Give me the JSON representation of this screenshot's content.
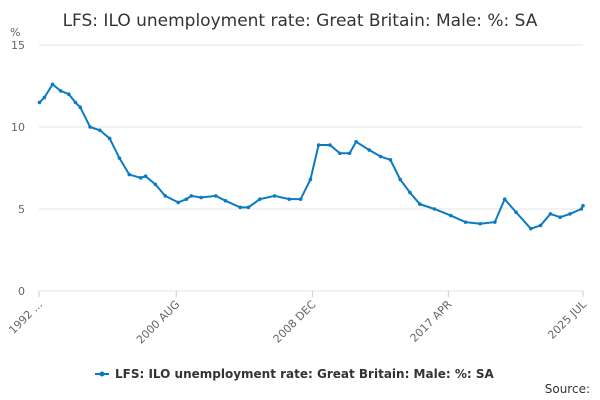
{
  "chart_data": {
    "type": "line",
    "title": "LFS: ILO unemployment rate: Great Britain: Male: %: SA",
    "y_label": "%",
    "source": "Source:",
    "x": [
      1992.2,
      1992.5,
      1993.0,
      1993.5,
      1994.0,
      1994.4,
      1994.7,
      1995.3,
      1995.9,
      1996.5,
      1997.1,
      1997.7,
      1998.4,
      1998.7,
      1999.3,
      1999.9,
      2000.7,
      2001.2,
      2001.5,
      2002.1,
      2003.0,
      2003.6,
      2004.5,
      2005.0,
      2005.7,
      2006.6,
      2007.5,
      2008.2,
      2008.8,
      2009.3,
      2010.0,
      2010.6,
      2011.2,
      2011.6,
      2012.4,
      2013.1,
      2013.7,
      2014.3,
      2014.9,
      2015.5,
      2016.4,
      2017.4,
      2018.3,
      2019.2,
      2020.1,
      2020.7,
      2021.4,
      2022.3,
      2022.9,
      2023.5,
      2024.1,
      2024.7,
      2025.4,
      2025.5
    ],
    "series": [
      {
        "name": "LFS: ILO unemployment rate: Great Britain: Male: %: SA",
        "color": "#0b7bc1",
        "values": [
          11.5,
          11.8,
          12.6,
          12.2,
          12.0,
          11.5,
          11.2,
          10.0,
          9.8,
          9.3,
          8.1,
          7.1,
          6.9,
          7.0,
          6.5,
          5.8,
          5.4,
          5.6,
          5.8,
          5.7,
          5.8,
          5.5,
          5.1,
          5.1,
          5.6,
          5.8,
          5.6,
          5.6,
          6.8,
          8.9,
          8.9,
          8.4,
          8.4,
          9.1,
          8.6,
          8.2,
          8.0,
          6.8,
          6.0,
          5.3,
          5.0,
          4.6,
          4.2,
          4.1,
          4.2,
          5.6,
          4.8,
          3.8,
          4.0,
          4.7,
          4.5,
          4.7,
          5.0,
          5.2
        ]
      }
    ],
    "xlim": [
      1992.17,
      2025.5
    ],
    "xticks": [
      {
        "value": 1992.17,
        "label": "1992 ..."
      },
      {
        "value": 2000.58,
        "label": "2000 AUG"
      },
      {
        "value": 2008.92,
        "label": "2008 DEC"
      },
      {
        "value": 2017.25,
        "label": "2017 APR"
      },
      {
        "value": 2025.5,
        "label": "2025 JUL"
      }
    ],
    "ylim": [
      0,
      15
    ],
    "yticks": [
      0,
      5,
      10,
      15
    ],
    "grid": true,
    "legend": "bottom"
  }
}
